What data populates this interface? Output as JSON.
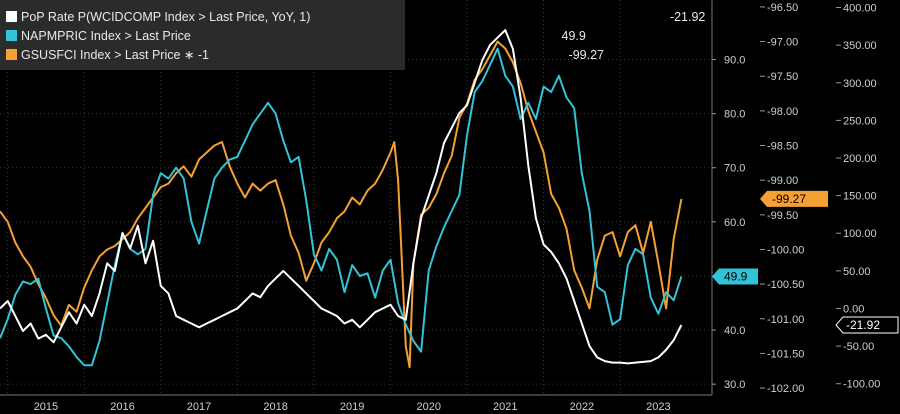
{
  "legend": [
    {
      "label": "PoP Rate P(WCIDCOMP Index > Last Price, YoY, 1)",
      "value": "-21.92",
      "color": "#ffffff"
    },
    {
      "label": "NAPMPRIC Index > Last Price",
      "value": "49.9",
      "color": "#32c4d6"
    },
    {
      "label": "GSUSFCI Index > Last Price ∗ -1",
      "value": "-99.27",
      "color": "#f5a033"
    }
  ],
  "colors": {
    "background": "#000000",
    "grid": "#3a3a3a",
    "axis_text": "#cfcfcf",
    "legend_bg": "#2b2b2b"
  },
  "chart_data": {
    "type": "line",
    "x_ticks": [
      "2015",
      "2016",
      "2017",
      "2018",
      "2019",
      "2020",
      "2021",
      "2022",
      "2023"
    ],
    "x_range": [
      2014.9,
      2024.2
    ],
    "axes": {
      "napm": {
        "side": "right-inner",
        "range": [
          28,
          101
        ],
        "ticks": [
          "30.0",
          "40.0",
          "50.0",
          "60.0",
          "70.0",
          "80.0",
          "90.0"
        ]
      },
      "gsusfci": {
        "side": "right-middle",
        "range": [
          -102.1,
          -96.4
        ],
        "reversed_values_shown": true,
        "ticks": [
          "-102.00",
          "-101.50",
          "-101.00",
          "-100.50",
          "-100.00",
          "-99.50",
          "-99.00",
          "-98.50",
          "-98.00",
          "-97.50",
          "-97.00",
          "-96.50"
        ]
      },
      "pop": {
        "side": "right-outer",
        "range": [
          -115,
          410
        ],
        "ticks": [
          "-100.00",
          "-50.00",
          "0.00",
          "50.00",
          "100.00",
          "150.00",
          "200.00",
          "250.00",
          "300.00",
          "350.00",
          "400.00"
        ]
      }
    },
    "last_value_tags": [
      {
        "series": "NAPMPRIC Index",
        "text": "49.9",
        "color": "#32c4d6"
      },
      {
        "series": "GSUSFCI Index",
        "text": "-99.27",
        "color": "#f5a033"
      },
      {
        "series": "PoP Rate",
        "text": "-21.92",
        "color": "#ffffff"
      }
    ],
    "series": [
      {
        "name": "NAPMPRIC Index > Last Price",
        "color": "#32c4d6",
        "axis": "napm",
        "points": [
          [
            2014.9,
            38.5
          ],
          [
            2015.0,
            42.0
          ],
          [
            2015.1,
            46.5
          ],
          [
            2015.2,
            49.0
          ],
          [
            2015.3,
            48.5
          ],
          [
            2015.4,
            49.5
          ],
          [
            2015.5,
            44.0
          ],
          [
            2015.6,
            39.0
          ],
          [
            2015.7,
            38.5
          ],
          [
            2015.8,
            37.0
          ],
          [
            2015.9,
            35.0
          ],
          [
            2016.0,
            33.5
          ],
          [
            2016.1,
            33.5
          ],
          [
            2016.2,
            38.0
          ],
          [
            2016.3,
            45.0
          ],
          [
            2016.4,
            52.0
          ],
          [
            2016.5,
            58.0
          ],
          [
            2016.6,
            55.0
          ],
          [
            2016.7,
            54.0
          ],
          [
            2016.8,
            55.0
          ],
          [
            2016.9,
            65.0
          ],
          [
            2017.0,
            69.0
          ],
          [
            2017.1,
            68.0
          ],
          [
            2017.2,
            70.0
          ],
          [
            2017.3,
            68.0
          ],
          [
            2017.4,
            60.0
          ],
          [
            2017.5,
            56.0
          ],
          [
            2017.6,
            62.0
          ],
          [
            2017.7,
            68.0
          ],
          [
            2017.8,
            70.0
          ],
          [
            2017.9,
            71.5
          ],
          [
            2018.0,
            72.0
          ],
          [
            2018.1,
            75.0
          ],
          [
            2018.2,
            78.0
          ],
          [
            2018.3,
            80.0
          ],
          [
            2018.4,
            82.0
          ],
          [
            2018.5,
            80.0
          ],
          [
            2018.6,
            75.0
          ],
          [
            2018.7,
            71.0
          ],
          [
            2018.8,
            72.0
          ],
          [
            2018.9,
            64.0
          ],
          [
            2019.0,
            54.0
          ],
          [
            2019.1,
            51.0
          ],
          [
            2019.2,
            55.0
          ],
          [
            2019.3,
            53.0
          ],
          [
            2019.4,
            47.0
          ],
          [
            2019.5,
            52.0
          ],
          [
            2019.6,
            50.0
          ],
          [
            2019.7,
            50.5
          ],
          [
            2019.8,
            46.0
          ],
          [
            2019.9,
            51.0
          ],
          [
            2020.0,
            53.0
          ],
          [
            2020.1,
            45.0
          ],
          [
            2020.2,
            41.0
          ],
          [
            2020.3,
            38.0
          ],
          [
            2020.4,
            36.0
          ],
          [
            2020.5,
            51.0
          ],
          [
            2020.6,
            55.5
          ],
          [
            2020.7,
            59.0
          ],
          [
            2020.8,
            62.0
          ],
          [
            2020.9,
            65.0
          ],
          [
            2021.0,
            76.0
          ],
          [
            2021.1,
            84.0
          ],
          [
            2021.2,
            86.0
          ],
          [
            2021.3,
            89.0
          ],
          [
            2021.4,
            92.0
          ],
          [
            2021.5,
            87.0
          ],
          [
            2021.6,
            85.0
          ],
          [
            2021.7,
            79.0
          ],
          [
            2021.8,
            82.0
          ],
          [
            2021.9,
            79.0
          ],
          [
            2022.0,
            85.0
          ],
          [
            2022.1,
            84.0
          ],
          [
            2022.2,
            87.0
          ],
          [
            2022.3,
            83.0
          ],
          [
            2022.4,
            81.0
          ],
          [
            2022.5,
            69.0
          ],
          [
            2022.6,
            62.0
          ],
          [
            2022.7,
            48.0
          ],
          [
            2022.8,
            47.0
          ],
          [
            2022.9,
            41.0
          ],
          [
            2023.0,
            42.0
          ],
          [
            2023.1,
            52.0
          ],
          [
            2023.2,
            55.0
          ],
          [
            2023.3,
            54.0
          ],
          [
            2023.4,
            46.0
          ],
          [
            2023.5,
            43.0
          ],
          [
            2023.6,
            47.0
          ],
          [
            2023.7,
            45.5
          ],
          [
            2023.8,
            49.9
          ]
        ]
      },
      {
        "name": "GSUSFCI Index > Last Price ∗ -1",
        "color": "#f5a033",
        "axis": "gsusfci",
        "points": [
          [
            2014.9,
            -99.45
          ],
          [
            2015.0,
            -99.6
          ],
          [
            2015.1,
            -99.9
          ],
          [
            2015.2,
            -100.1
          ],
          [
            2015.3,
            -100.25
          ],
          [
            2015.4,
            -100.5
          ],
          [
            2015.5,
            -100.7
          ],
          [
            2015.6,
            -100.95
          ],
          [
            2015.7,
            -101.1
          ],
          [
            2015.8,
            -100.8
          ],
          [
            2015.9,
            -100.9
          ],
          [
            2016.0,
            -100.55
          ],
          [
            2016.1,
            -100.3
          ],
          [
            2016.2,
            -100.1
          ],
          [
            2016.3,
            -100.0
          ],
          [
            2016.4,
            -99.95
          ],
          [
            2016.5,
            -99.85
          ],
          [
            2016.6,
            -99.75
          ],
          [
            2016.7,
            -99.55
          ],
          [
            2016.8,
            -99.4
          ],
          [
            2016.9,
            -99.25
          ],
          [
            2017.0,
            -99.1
          ],
          [
            2017.1,
            -99.05
          ],
          [
            2017.2,
            -98.9
          ],
          [
            2017.3,
            -98.8
          ],
          [
            2017.4,
            -98.95
          ],
          [
            2017.5,
            -98.7
          ],
          [
            2017.6,
            -98.6
          ],
          [
            2017.7,
            -98.5
          ],
          [
            2017.8,
            -98.45
          ],
          [
            2017.9,
            -98.8
          ],
          [
            2018.0,
            -99.05
          ],
          [
            2018.1,
            -99.25
          ],
          [
            2018.2,
            -99.05
          ],
          [
            2018.3,
            -99.15
          ],
          [
            2018.4,
            -99.05
          ],
          [
            2018.5,
            -99.0
          ],
          [
            2018.6,
            -99.35
          ],
          [
            2018.7,
            -99.8
          ],
          [
            2018.8,
            -100.05
          ],
          [
            2018.9,
            -100.45
          ],
          [
            2019.0,
            -100.2
          ],
          [
            2019.1,
            -99.9
          ],
          [
            2019.2,
            -99.75
          ],
          [
            2019.3,
            -99.55
          ],
          [
            2019.4,
            -99.45
          ],
          [
            2019.5,
            -99.25
          ],
          [
            2019.6,
            -99.35
          ],
          [
            2019.7,
            -99.15
          ],
          [
            2019.8,
            -99.05
          ],
          [
            2019.9,
            -98.85
          ],
          [
            2020.0,
            -98.6
          ],
          [
            2020.05,
            -98.45
          ],
          [
            2020.1,
            -99.0
          ],
          [
            2020.2,
            -101.4
          ],
          [
            2020.25,
            -101.7
          ],
          [
            2020.3,
            -100.2
          ],
          [
            2020.4,
            -99.5
          ],
          [
            2020.5,
            -99.4
          ],
          [
            2020.6,
            -99.2
          ],
          [
            2020.7,
            -98.9
          ],
          [
            2020.8,
            -98.65
          ],
          [
            2020.9,
            -98.1
          ],
          [
            2021.0,
            -97.9
          ],
          [
            2021.1,
            -97.55
          ],
          [
            2021.2,
            -97.4
          ],
          [
            2021.3,
            -97.2
          ],
          [
            2021.4,
            -97.0
          ],
          [
            2021.5,
            -97.1
          ],
          [
            2021.6,
            -97.3
          ],
          [
            2021.7,
            -97.6
          ],
          [
            2021.8,
            -98.0
          ],
          [
            2021.9,
            -98.3
          ],
          [
            2022.0,
            -98.6
          ],
          [
            2022.1,
            -99.2
          ],
          [
            2022.2,
            -99.4
          ],
          [
            2022.3,
            -99.7
          ],
          [
            2022.4,
            -100.3
          ],
          [
            2022.5,
            -100.55
          ],
          [
            2022.6,
            -100.85
          ],
          [
            2022.7,
            -100.15
          ],
          [
            2022.8,
            -99.8
          ],
          [
            2022.9,
            -99.75
          ],
          [
            2023.0,
            -100.1
          ],
          [
            2023.1,
            -99.75
          ],
          [
            2023.2,
            -99.65
          ],
          [
            2023.3,
            -100.05
          ],
          [
            2023.4,
            -99.6
          ],
          [
            2023.5,
            -100.2
          ],
          [
            2023.6,
            -100.85
          ],
          [
            2023.7,
            -99.85
          ],
          [
            2023.8,
            -99.27
          ]
        ]
      },
      {
        "name": "PoP Rate P(WCIDCOMP Index > Last Price, YoY, 1)",
        "color": "#ffffff",
        "axis": "pop",
        "points": [
          [
            2014.9,
            0
          ],
          [
            2015.0,
            10
          ],
          [
            2015.1,
            -10
          ],
          [
            2015.2,
            -30
          ],
          [
            2015.3,
            -20
          ],
          [
            2015.4,
            -40
          ],
          [
            2015.5,
            -35
          ],
          [
            2015.6,
            -45
          ],
          [
            2015.7,
            -25
          ],
          [
            2015.8,
            -5
          ],
          [
            2015.9,
            -20
          ],
          [
            2016.0,
            5
          ],
          [
            2016.1,
            -10
          ],
          [
            2016.2,
            20
          ],
          [
            2016.3,
            60
          ],
          [
            2016.4,
            50
          ],
          [
            2016.5,
            100
          ],
          [
            2016.6,
            80
          ],
          [
            2016.7,
            110
          ],
          [
            2016.8,
            60
          ],
          [
            2016.9,
            90
          ],
          [
            2017.0,
            30
          ],
          [
            2017.1,
            20
          ],
          [
            2017.2,
            -10
          ],
          [
            2017.3,
            -15
          ],
          [
            2017.4,
            -20
          ],
          [
            2017.5,
            -25
          ],
          [
            2017.6,
            -20
          ],
          [
            2017.7,
            -15
          ],
          [
            2017.8,
            -10
          ],
          [
            2017.9,
            -5
          ],
          [
            2018.0,
            0
          ],
          [
            2018.1,
            10
          ],
          [
            2018.2,
            20
          ],
          [
            2018.3,
            15
          ],
          [
            2018.4,
            30
          ],
          [
            2018.5,
            40
          ],
          [
            2018.6,
            50
          ],
          [
            2018.7,
            40
          ],
          [
            2018.8,
            30
          ],
          [
            2018.9,
            20
          ],
          [
            2019.0,
            10
          ],
          [
            2019.1,
            0
          ],
          [
            2019.2,
            -5
          ],
          [
            2019.3,
            -10
          ],
          [
            2019.4,
            -20
          ],
          [
            2019.5,
            -15
          ],
          [
            2019.6,
            -25
          ],
          [
            2019.7,
            -15
          ],
          [
            2019.8,
            -5
          ],
          [
            2019.9,
            0
          ],
          [
            2020.0,
            5
          ],
          [
            2020.1,
            -10
          ],
          [
            2020.2,
            -15
          ],
          [
            2020.3,
            60
          ],
          [
            2020.4,
            120
          ],
          [
            2020.5,
            150
          ],
          [
            2020.6,
            180
          ],
          [
            2020.7,
            220
          ],
          [
            2020.8,
            240
          ],
          [
            2020.9,
            260
          ],
          [
            2021.0,
            270
          ],
          [
            2021.1,
            300
          ],
          [
            2021.2,
            330
          ],
          [
            2021.3,
            350
          ],
          [
            2021.4,
            360
          ],
          [
            2021.5,
            370
          ],
          [
            2021.6,
            345
          ],
          [
            2021.7,
            280
          ],
          [
            2021.8,
            190
          ],
          [
            2021.9,
            120
          ],
          [
            2022.0,
            85
          ],
          [
            2022.1,
            75
          ],
          [
            2022.2,
            60
          ],
          [
            2022.3,
            40
          ],
          [
            2022.4,
            10
          ],
          [
            2022.5,
            -20
          ],
          [
            2022.6,
            -50
          ],
          [
            2022.7,
            -65
          ],
          [
            2022.8,
            -70
          ],
          [
            2022.9,
            -72
          ],
          [
            2023.0,
            -72
          ],
          [
            2023.1,
            -73
          ],
          [
            2023.2,
            -72
          ],
          [
            2023.3,
            -71
          ],
          [
            2023.4,
            -70
          ],
          [
            2023.5,
            -65
          ],
          [
            2023.6,
            -55
          ],
          [
            2023.7,
            -42
          ],
          [
            2023.8,
            -21.92
          ]
        ]
      }
    ]
  }
}
